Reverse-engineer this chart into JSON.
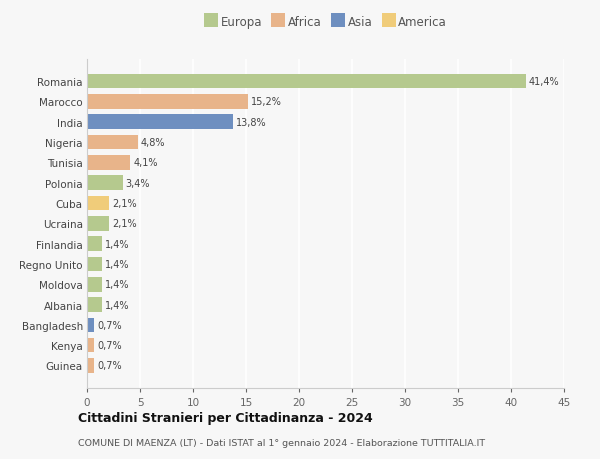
{
  "countries": [
    "Romania",
    "Marocco",
    "India",
    "Nigeria",
    "Tunisia",
    "Polonia",
    "Cuba",
    "Ucraina",
    "Finlandia",
    "Regno Unito",
    "Moldova",
    "Albania",
    "Bangladesh",
    "Kenya",
    "Guinea"
  ],
  "values": [
    41.4,
    15.2,
    13.8,
    4.8,
    4.1,
    3.4,
    2.1,
    2.1,
    1.4,
    1.4,
    1.4,
    1.4,
    0.7,
    0.7,
    0.7
  ],
  "labels": [
    "41,4%",
    "15,2%",
    "13,8%",
    "4,8%",
    "4,1%",
    "3,4%",
    "2,1%",
    "2,1%",
    "1,4%",
    "1,4%",
    "1,4%",
    "1,4%",
    "0,7%",
    "0,7%",
    "0,7%"
  ],
  "colors": [
    "#b5c98e",
    "#e8b48a",
    "#6e8fc0",
    "#e8b48a",
    "#e8b48a",
    "#b5c98e",
    "#f0cc7a",
    "#b5c98e",
    "#b5c98e",
    "#b5c98e",
    "#b5c98e",
    "#b5c98e",
    "#6e8fc0",
    "#e8b48a",
    "#e8b48a"
  ],
  "legend_labels": [
    "Europa",
    "Africa",
    "Asia",
    "America"
  ],
  "legend_colors": [
    "#b5c98e",
    "#e8b48a",
    "#6e8fc0",
    "#f0cc7a"
  ],
  "title": "Cittadini Stranieri per Cittadinanza - 2024",
  "subtitle": "COMUNE DI MAENZA (LT) - Dati ISTAT al 1° gennaio 2024 - Elaborazione TUTTITALIA.IT",
  "xlim": [
    0,
    45
  ],
  "xticks": [
    0,
    5,
    10,
    15,
    20,
    25,
    30,
    35,
    40,
    45
  ],
  "background_color": "#f7f7f7",
  "grid_color": "#ffffff"
}
